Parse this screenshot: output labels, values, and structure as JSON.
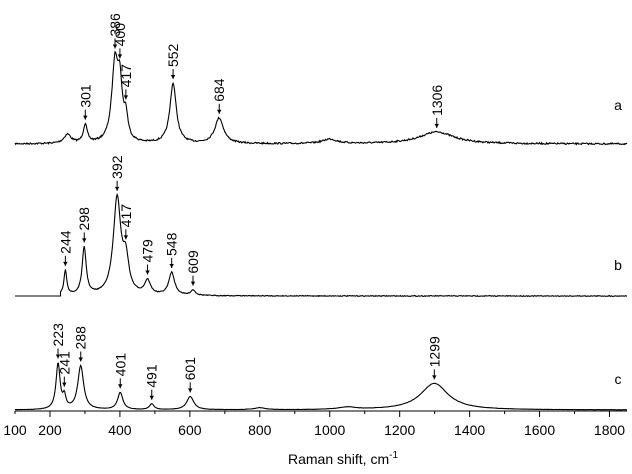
{
  "chart_data": {
    "type": "line",
    "title": "",
    "xlabel": "Raman shift, cm",
    "xlabel_superscript": "-1",
    "ylabel": "",
    "xlim": [
      100,
      1850
    ],
    "xticks": [
      100,
      200,
      400,
      600,
      800,
      1000,
      1200,
      1400,
      1600,
      1800
    ],
    "grid": false,
    "legend": "none",
    "line_color": "#000000",
    "series": [
      {
        "name": "a",
        "baseline": 1.0,
        "peaks": [
          {
            "x": 250,
            "h": 0.06,
            "w": 12
          },
          {
            "x": 301,
            "h": 0.12,
            "w": 7
          },
          {
            "x": 386,
            "h": 0.52,
            "w": 11
          },
          {
            "x": 400,
            "h": 0.32,
            "w": 8
          },
          {
            "x": 417,
            "h": 0.15,
            "w": 7
          },
          {
            "x": 552,
            "h": 0.4,
            "w": 11
          },
          {
            "x": 684,
            "h": 0.17,
            "w": 15
          },
          {
            "x": 1000,
            "h": 0.03,
            "w": 25
          },
          {
            "x": 1306,
            "h": 0.08,
            "w": 60
          }
        ],
        "annotations": [
          {
            "x": 301,
            "label": "301"
          },
          {
            "x": 386,
            "label": "386"
          },
          {
            "x": 400,
            "label": "400"
          },
          {
            "x": 417,
            "label": "417"
          },
          {
            "x": 552,
            "label": "552"
          },
          {
            "x": 684,
            "label": "684"
          },
          {
            "x": 1306,
            "label": "1306"
          }
        ]
      },
      {
        "name": "b",
        "baseline": 1.0,
        "start_x": 230,
        "peaks": [
          {
            "x": 244,
            "h": 0.14,
            "w": 5
          },
          {
            "x": 298,
            "h": 0.27,
            "w": 7
          },
          {
            "x": 392,
            "h": 0.55,
            "w": 13
          },
          {
            "x": 417,
            "h": 0.18,
            "w": 10
          },
          {
            "x": 479,
            "h": 0.08,
            "w": 10
          },
          {
            "x": 548,
            "h": 0.13,
            "w": 10
          },
          {
            "x": 609,
            "h": 0.03,
            "w": 8
          }
        ],
        "annotations": [
          {
            "x": 244,
            "label": "244"
          },
          {
            "x": 298,
            "label": "298"
          },
          {
            "x": 392,
            "label": "392"
          },
          {
            "x": 417,
            "label": "417"
          },
          {
            "x": 479,
            "label": "479"
          },
          {
            "x": 548,
            "label": "548"
          },
          {
            "x": 609,
            "label": "609"
          }
        ]
      },
      {
        "name": "c",
        "baseline": 1.0,
        "peaks": [
          {
            "x": 223,
            "h": 0.24,
            "w": 7
          },
          {
            "x": 241,
            "h": 0.06,
            "w": 5
          },
          {
            "x": 288,
            "h": 0.23,
            "w": 10
          },
          {
            "x": 401,
            "h": 0.09,
            "w": 9
          },
          {
            "x": 491,
            "h": 0.03,
            "w": 8
          },
          {
            "x": 601,
            "h": 0.07,
            "w": 12
          },
          {
            "x": 800,
            "h": 0.01,
            "w": 20
          },
          {
            "x": 1050,
            "h": 0.012,
            "w": 30
          },
          {
            "x": 1299,
            "h": 0.14,
            "w": 48
          }
        ],
        "annotations": [
          {
            "x": 223,
            "label": "223"
          },
          {
            "x": 241,
            "label": "241"
          },
          {
            "x": 288,
            "label": "288"
          },
          {
            "x": 401,
            "label": "401"
          },
          {
            "x": 491,
            "label": "491"
          },
          {
            "x": 601,
            "label": "601"
          },
          {
            "x": 1299,
            "label": "1299"
          }
        ]
      }
    ]
  }
}
